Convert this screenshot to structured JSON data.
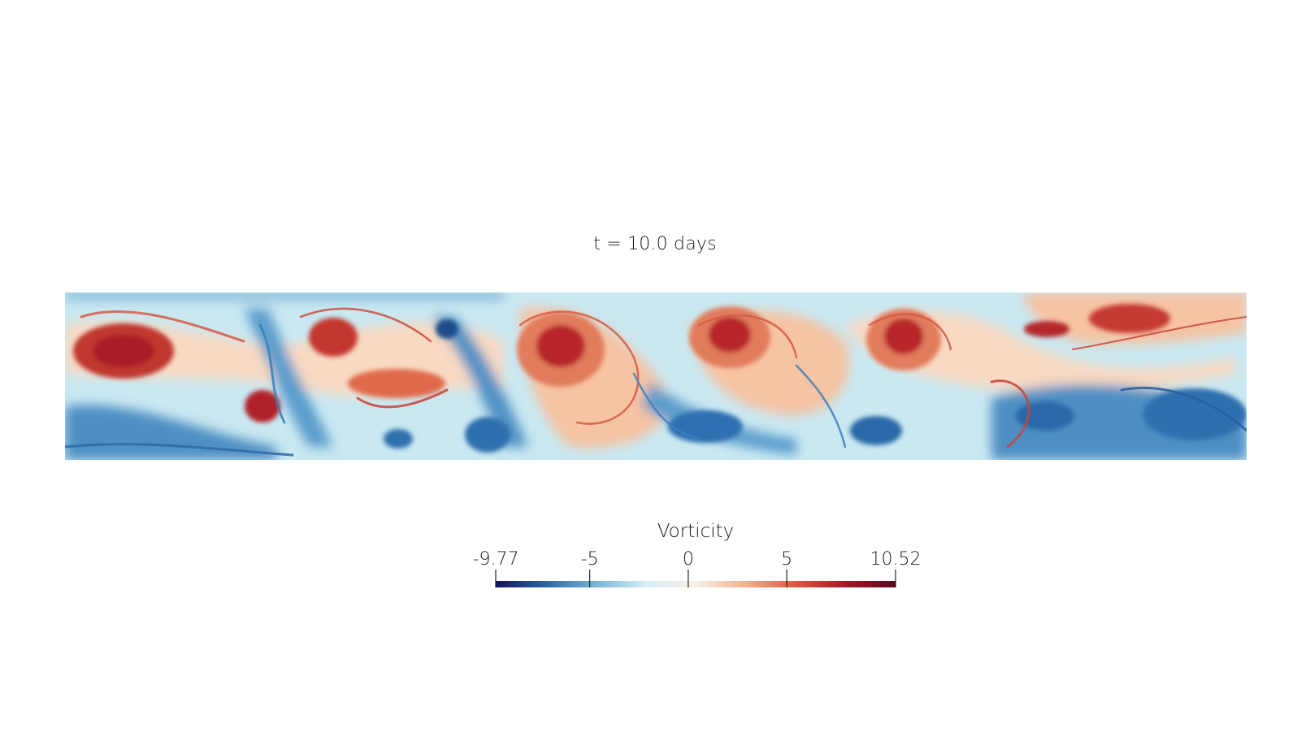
{
  "title": "t = 10.0 days",
  "colorbar": {
    "title": "Vorticity",
    "min": -9.77,
    "max": 10.52,
    "ticks": [
      {
        "value": -9.77,
        "label": "-9.77"
      },
      {
        "value": -5,
        "label": "-5"
      },
      {
        "value": 0,
        "label": "0"
      },
      {
        "value": 5,
        "label": "5"
      },
      {
        "value": 10.52,
        "label": "10.52"
      }
    ],
    "colors": [
      "#14135e",
      "#2a64a8",
      "#77b6d6",
      "#d6eef5",
      "#f7f0e6",
      "#f2b28d",
      "#d9593f",
      "#a31a25",
      "#5c0720"
    ]
  },
  "field": {
    "background_color": "#c9e8f1",
    "positive_color": "#e46a4f",
    "strong_positive_color": "#b3252b",
    "negative_color": "#2e74b3",
    "strong_negative_color": "#1f5794",
    "cream_color": "#f8d9c2"
  }
}
